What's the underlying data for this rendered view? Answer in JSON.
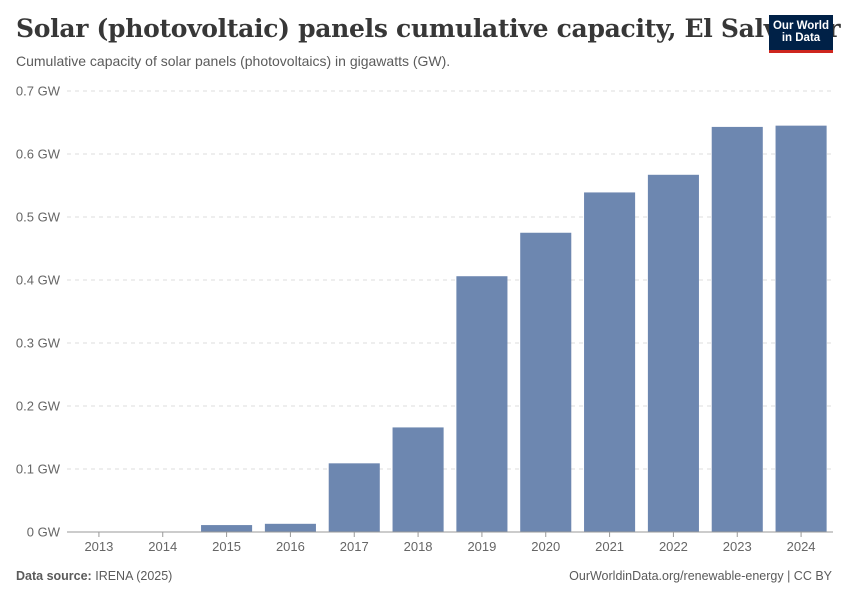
{
  "header": {
    "title": "Solar (photovoltaic) panels cumulative capacity, El Salvador",
    "subtitle": "Cumulative capacity of solar panels (photovoltaics) in gigawatts (GW)."
  },
  "logo": {
    "line1": "Our World",
    "line2": "in Data",
    "bg_color": "#002147",
    "accent_color": "#ce261e"
  },
  "footer": {
    "source_label": "Data source:",
    "source_value": "IRENA (2025)",
    "right": "OurWorldinData.org/renewable-energy | CC BY"
  },
  "chart_data": {
    "type": "bar",
    "title": "Solar (photovoltaic) panels cumulative capacity, El Salvador",
    "xlabel": "",
    "ylabel": "GW",
    "categories": [
      "2013",
      "2014",
      "2015",
      "2016",
      "2017",
      "2018",
      "2019",
      "2020",
      "2021",
      "2022",
      "2023",
      "2024"
    ],
    "values": [
      0.0005,
      0.0005,
      0.011,
      0.013,
      0.109,
      0.166,
      0.406,
      0.475,
      0.539,
      0.567,
      0.643,
      0.645
    ],
    "yticks": [
      0,
      0.1,
      0.2,
      0.3,
      0.4,
      0.5,
      0.6,
      0.7
    ],
    "ytick_labels": [
      "0 GW",
      "0.1 GW",
      "0.2 GW",
      "0.3 GW",
      "0.4 GW",
      "0.5 GW",
      "0.6 GW",
      "0.7 GW"
    ],
    "ylim": [
      0,
      0.7
    ],
    "bar_color": "#6d87b0",
    "grid": true
  }
}
